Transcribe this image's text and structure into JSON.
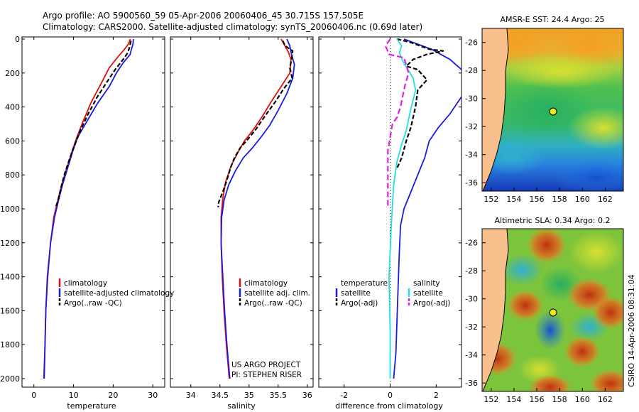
{
  "header": {
    "line1": "Argo profile: AO 5900560_59 05-Apr-2006 20060406_45 30.715S 157.505E",
    "line2": "Climatology: CARS2000. Satellite-adjusted climatology: synTS_20060406.nc (0.69d later)"
  },
  "colors": {
    "clim": "#e01010",
    "sat": "#1a1ae0",
    "argo": "#000000",
    "sat_diff_s": "#22e0e0",
    "argo_diff_s": "#e020e0"
  },
  "charts": [
    {
      "type": "line",
      "xlabel": "temperature",
      "xticks": [
        "0",
        "10",
        "20",
        "30"
      ],
      "xlim": [
        -3,
        33
      ],
      "ylim": [
        2050,
        0
      ],
      "yticks": [
        "0",
        "200",
        "400",
        "600",
        "800",
        "1000",
        "1200",
        "1400",
        "1600",
        "1800",
        "2000"
      ],
      "legend": [
        "climatology",
        "satellite-adjusted climatology",
        "Argo(..raw -QC)"
      ],
      "series": [
        {
          "name": "climatology",
          "color": "clim",
          "dash": "",
          "points": [
            [
              24.3,
              0
            ],
            [
              24,
              20
            ],
            [
              23.5,
              40
            ],
            [
              22.5,
              70
            ],
            [
              21,
              110
            ],
            [
              19,
              170
            ],
            [
              17,
              260
            ],
            [
              14.5,
              370
            ],
            [
              12.5,
              480
            ],
            [
              10.8,
              580
            ],
            [
              9.5,
              670
            ],
            [
              8.3,
              760
            ],
            [
              7,
              860
            ],
            [
              6,
              950
            ],
            [
              5,
              1050
            ],
            [
              4.2,
              1200
            ],
            [
              3.5,
              1400
            ],
            [
              3,
              1600
            ],
            [
              2.8,
              1800
            ],
            [
              2.5,
              2000
            ]
          ]
        },
        {
          "name": "satellite-adjusted climatology",
          "color": "sat",
          "dash": "",
          "points": [
            [
              25.1,
              0
            ],
            [
              25,
              30
            ],
            [
              24.6,
              60
            ],
            [
              24.3,
              90
            ],
            [
              22.5,
              140
            ],
            [
              20.8,
              200
            ],
            [
              19,
              280
            ],
            [
              16,
              380
            ],
            [
              13.5,
              480
            ],
            [
              11,
              580
            ],
            [
              9.8,
              660
            ],
            [
              8.5,
              760
            ],
            [
              7.2,
              860
            ],
            [
              6.2,
              950
            ],
            [
              5.2,
              1050
            ],
            [
              4.2,
              1200
            ],
            [
              3.4,
              1400
            ],
            [
              3,
              1600
            ],
            [
              2.8,
              1800
            ],
            [
              2.6,
              2000
            ]
          ]
        },
        {
          "name": "Argo(..raw -QC)",
          "color": "argo",
          "dash": "6 3",
          "points": [
            [
              24.5,
              10
            ],
            [
              24.2,
              40
            ],
            [
              23.7,
              80
            ],
            [
              22.5,
              120
            ],
            [
              20.5,
              180
            ],
            [
              18.5,
              250
            ],
            [
              16,
              340
            ],
            [
              13.7,
              440
            ],
            [
              11.7,
              540
            ],
            [
              10,
              640
            ],
            [
              8.8,
              720
            ],
            [
              7.8,
              790
            ],
            [
              7,
              860
            ],
            [
              6.1,
              950
            ],
            [
              5.5,
              990
            ]
          ]
        }
      ]
    },
    {
      "type": "line",
      "xlabel": "salinity",
      "xticks": [
        "34",
        "34.5",
        "35",
        "35.5",
        "36"
      ],
      "xlim": [
        33.65,
        36.1
      ],
      "ylim": [
        2050,
        0
      ],
      "legend": [
        "climatology",
        "satellite adj. clim.",
        "Argo(..raw -QC)"
      ],
      "annotation": [
        "US ARGO PROJECT",
        "PI: STEPHEN RISER"
      ],
      "series": [
        {
          "name": "climatology",
          "color": "clim",
          "dash": "",
          "points": [
            [
              35.55,
              0
            ],
            [
              35.6,
              30
            ],
            [
              35.68,
              80
            ],
            [
              35.72,
              120
            ],
            [
              35.7,
              200
            ],
            [
              35.55,
              280
            ],
            [
              35.38,
              370
            ],
            [
              35.22,
              460
            ],
            [
              35.06,
              540
            ],
            [
              34.92,
              600
            ],
            [
              34.82,
              660
            ],
            [
              34.7,
              740
            ],
            [
              34.6,
              840
            ],
            [
              34.55,
              940
            ],
            [
              34.52,
              1050
            ],
            [
              34.52,
              1200
            ],
            [
              34.54,
              1400
            ],
            [
              34.57,
              1600
            ],
            [
              34.61,
              1800
            ],
            [
              34.66,
              2000
            ]
          ]
        },
        {
          "name": "satellite adj. clim.",
          "color": "sat",
          "dash": "",
          "points": [
            [
              35.65,
              0
            ],
            [
              35.7,
              40
            ],
            [
              35.73,
              90
            ],
            [
              35.78,
              150
            ],
            [
              35.75,
              230
            ],
            [
              35.65,
              320
            ],
            [
              35.5,
              420
            ],
            [
              35.35,
              510
            ],
            [
              35.2,
              580
            ],
            [
              35.06,
              640
            ],
            [
              34.9,
              700
            ],
            [
              34.76,
              780
            ],
            [
              34.65,
              860
            ],
            [
              34.57,
              950
            ],
            [
              34.53,
              1050
            ],
            [
              34.52,
              1200
            ],
            [
              34.55,
              1400
            ],
            [
              34.58,
              1600
            ],
            [
              34.62,
              1800
            ],
            [
              34.67,
              2000
            ]
          ]
        },
        {
          "name": "Argo(..raw -QC)",
          "color": "argo",
          "dash": "6 3",
          "points": [
            [
              35.58,
              10
            ],
            [
              35.62,
              40
            ],
            [
              35.75,
              70
            ],
            [
              35.73,
              120
            ],
            [
              35.7,
              170
            ],
            [
              35.74,
              230
            ],
            [
              35.6,
              290
            ],
            [
              35.45,
              370
            ],
            [
              35.28,
              450
            ],
            [
              35.12,
              530
            ],
            [
              34.98,
              590
            ],
            [
              34.85,
              640
            ],
            [
              34.75,
              700
            ],
            [
              34.68,
              760
            ],
            [
              34.62,
              830
            ],
            [
              34.55,
              900
            ],
            [
              34.48,
              960
            ],
            [
              34.47,
              990
            ]
          ]
        }
      ]
    },
    {
      "type": "line",
      "xlabel": "difference from climatology",
      "xticks": [
        "-2",
        "0",
        "2"
      ],
      "xlim": [
        -3.1,
        3.1
      ],
      "ylim": [
        2050,
        0
      ],
      "legend_left": {
        "title": "temperature",
        "items": [
          "satellite",
          "Argo(-adj)"
        ]
      },
      "legend_right": {
        "title": "salinity",
        "items": [
          "satellite",
          "Argo(-adj)"
        ]
      },
      "series": [
        {
          "name": "temperature satellite",
          "color": "sat",
          "dash": "",
          "points": [
            [
              0.6,
              0
            ],
            [
              0.9,
              15
            ],
            [
              1.8,
              60
            ],
            [
              2.6,
              120
            ],
            [
              3.1,
              180
            ]
          ]
        },
        {
          "name": "temperature satellite deep",
          "color": "sat",
          "dash": "",
          "points": [
            [
              3.1,
              340
            ],
            [
              2.6,
              440
            ],
            [
              2.1,
              520
            ],
            [
              1.7,
              600
            ],
            [
              1.5,
              700
            ],
            [
              1.2,
              800
            ],
            [
              0.9,
              900
            ],
            [
              0.6,
              1000
            ],
            [
              0.45,
              1100
            ],
            [
              0.4,
              1250
            ],
            [
              0.35,
              1450
            ],
            [
              0.3,
              1650
            ],
            [
              0.25,
              1850
            ],
            [
              0.15,
              2000
            ]
          ]
        },
        {
          "name": "temperature Argo(-adj)",
          "color": "argo",
          "dash": "6 3",
          "points": [
            [
              0.3,
              0
            ],
            [
              0.9,
              20
            ],
            [
              1.7,
              60
            ],
            [
              2.3,
              70
            ],
            [
              1.6,
              90
            ],
            [
              1.0,
              120
            ],
            [
              0.7,
              160
            ],
            [
              1.2,
              180
            ],
            [
              1.6,
              240
            ],
            [
              1.2,
              300
            ],
            [
              1.1,
              400
            ],
            [
              0.9,
              520
            ],
            [
              0.7,
              600
            ],
            [
              0.5,
              700
            ],
            [
              0.3,
              760
            ]
          ]
        },
        {
          "name": "salinity satellite",
          "color": "sat_diff_s",
          "dash": "",
          "points": [
            [
              0.3,
              0
            ],
            [
              0.5,
              40
            ],
            [
              0.4,
              80
            ],
            [
              0.55,
              130
            ],
            [
              1.0,
              230
            ],
            [
              1.1,
              300
            ],
            [
              0.85,
              440
            ],
            [
              0.7,
              540
            ],
            [
              0.5,
              620
            ],
            [
              0.3,
              720
            ],
            [
              0.15,
              860
            ],
            [
              0.05,
              1100
            ],
            [
              -0.05,
              1400
            ],
            [
              0,
              1700
            ],
            [
              0,
              2000
            ]
          ]
        },
        {
          "name": "salinity Argo(-adj)",
          "color": "argo_diff_s",
          "dash": "8 4",
          "points": [
            [
              0.0,
              0
            ],
            [
              -0.2,
              40
            ],
            [
              -0.05,
              90
            ],
            [
              0.6,
              110
            ],
            [
              0.8,
              200
            ],
            [
              0.65,
              270
            ],
            [
              0.6,
              300
            ],
            [
              0.45,
              400
            ],
            [
              0.3,
              460
            ],
            [
              0.1,
              500
            ],
            [
              0.0,
              580
            ],
            [
              -0.1,
              660
            ],
            [
              -0.1,
              800
            ],
            [
              -0.1,
              990
            ]
          ]
        }
      ]
    }
  ],
  "maps": [
    {
      "title": "AMSR-E SST: 24.4 Argo: 25",
      "yticks": [
        "-26",
        "-28",
        "-30",
        "-32",
        "-34",
        "-36"
      ],
      "xticks": [
        "152",
        "154",
        "156",
        "158",
        "160",
        "162"
      ],
      "float": {
        "lon": 157.5,
        "lat": -30.7
      }
    },
    {
      "title": "Altimetric SLA: 0.34 Argo: 0.2",
      "yticks": [
        "-26",
        "-28",
        "-30",
        "-32",
        "-34",
        "-36"
      ],
      "xticks": [
        "152",
        "154",
        "156",
        "158",
        "160",
        "162"
      ],
      "float": {
        "lon": 157.5,
        "lat": -30.7
      }
    }
  ],
  "side_label": "CSIRO 14-Apr-2006 08:31:04"
}
